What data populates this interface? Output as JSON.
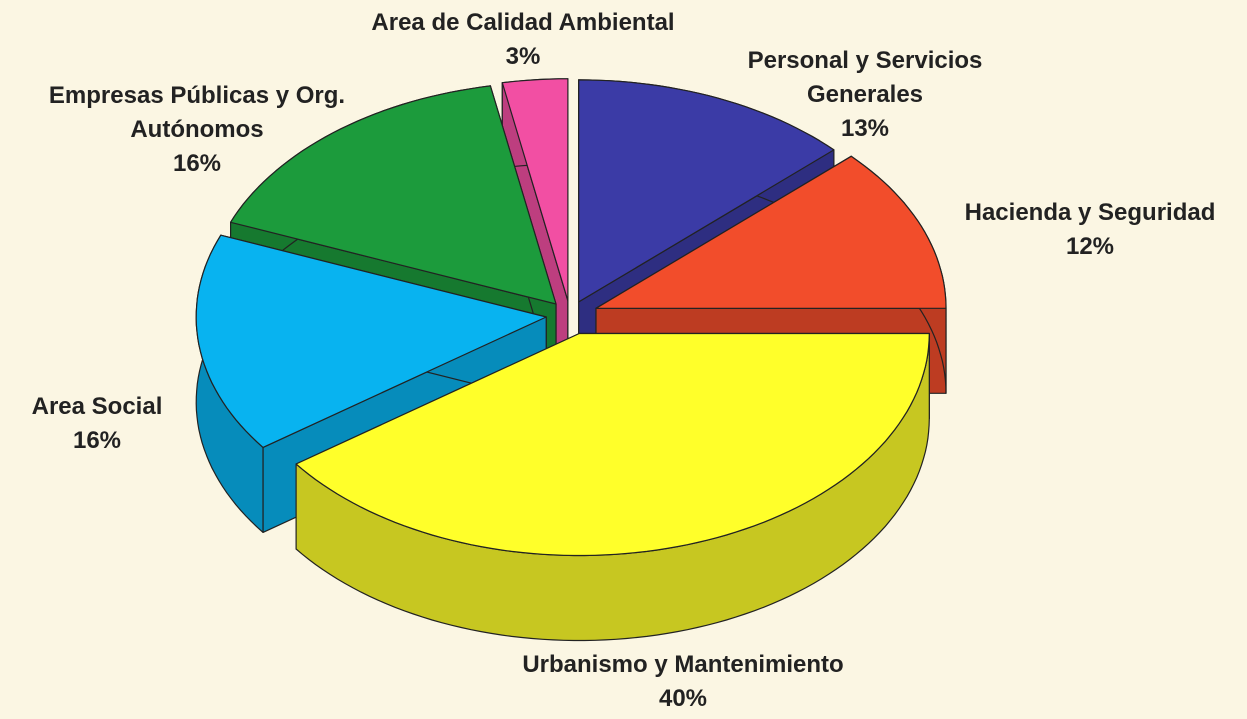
{
  "chart_data": {
    "type": "pie",
    "categories": [
      "Personal y Servicios Generales",
      "Hacienda y Seguridad",
      "Urbanismo y Mantenimiento",
      "Area Social",
      "Empresas Públicas y Org. Autónomos",
      "Area de Calidad Ambiental"
    ],
    "values": [
      13,
      12,
      40,
      16,
      16,
      3
    ],
    "value_labels": [
      "13%",
      "12%",
      "40%",
      "16%",
      "16%",
      "3%"
    ],
    "colors": [
      "#3b3ba6",
      "#f24d2b",
      "#ffff2a",
      "#08b3f0",
      "#1c9b3c",
      "#f24fa3"
    ]
  }
}
